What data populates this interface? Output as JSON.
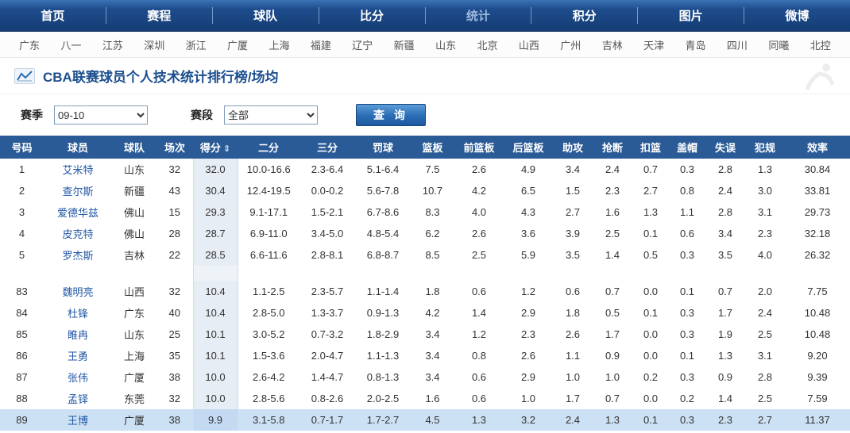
{
  "nav": {
    "items": [
      {
        "label": "首页",
        "active": false
      },
      {
        "label": "赛程",
        "active": false
      },
      {
        "label": "球队",
        "active": false
      },
      {
        "label": "比分",
        "active": false
      },
      {
        "label": "统计",
        "active": true
      },
      {
        "label": "积分",
        "active": false
      },
      {
        "label": "图片",
        "active": false
      },
      {
        "label": "微博",
        "active": false
      }
    ]
  },
  "teams": [
    "广东",
    "八一",
    "江苏",
    "深圳",
    "浙江",
    "广厦",
    "上海",
    "福建",
    "辽宁",
    "新疆",
    "山东",
    "北京",
    "山西",
    "广州",
    "吉林",
    "天津",
    "青岛",
    "四川",
    "同曦",
    "北控"
  ],
  "header": {
    "title": "CBA联赛球员个人技术统计排行榜/场均"
  },
  "filters": {
    "season_label": "赛季",
    "season_value": "09-10",
    "stage_label": "赛段",
    "stage_value": "全部",
    "search_button": "查 询"
  },
  "table": {
    "columns": [
      "号码",
      "球员",
      "球队",
      "场次",
      "得分",
      "二分",
      "三分",
      "罚球",
      "篮板",
      "前篮板",
      "后篮板",
      "助攻",
      "抢断",
      "扣篮",
      "盖帽",
      "失误",
      "犯规",
      "效率"
    ],
    "sort_column": "得分",
    "sort_icon": "⇕",
    "score_column_index": 4,
    "highlighted_number": "89",
    "top_rows": [
      [
        "1",
        "艾米特",
        "山东",
        "32",
        "32.0",
        "10.0-16.6",
        "2.3-6.4",
        "5.1-6.4",
        "7.5",
        "2.6",
        "4.9",
        "3.4",
        "2.4",
        "0.7",
        "0.3",
        "2.8",
        "1.3",
        "30.84"
      ],
      [
        "2",
        "查尔斯",
        "新疆",
        "43",
        "30.4",
        "12.4-19.5",
        "0.0-0.2",
        "5.6-7.8",
        "10.7",
        "4.2",
        "6.5",
        "1.5",
        "2.3",
        "2.7",
        "0.8",
        "2.4",
        "3.0",
        "33.81"
      ],
      [
        "3",
        "爱德华兹",
        "佛山",
        "15",
        "29.3",
        "9.1-17.1",
        "1.5-2.1",
        "6.7-8.6",
        "8.3",
        "4.0",
        "4.3",
        "2.7",
        "1.6",
        "1.3",
        "1.1",
        "2.8",
        "3.1",
        "29.73"
      ],
      [
        "4",
        "皮克特",
        "佛山",
        "28",
        "28.7",
        "6.9-11.0",
        "3.4-5.0",
        "4.8-5.4",
        "6.2",
        "2.6",
        "3.6",
        "3.9",
        "2.5",
        "0.1",
        "0.6",
        "3.4",
        "2.3",
        "32.18"
      ],
      [
        "5",
        "罗杰斯",
        "吉林",
        "22",
        "28.5",
        "6.6-11.6",
        "2.8-8.1",
        "6.8-8.7",
        "8.5",
        "2.5",
        "5.9",
        "3.5",
        "1.4",
        "0.5",
        "0.3",
        "3.5",
        "4.0",
        "26.32"
      ]
    ],
    "bottom_rows": [
      [
        "83",
        "魏明亮",
        "山西",
        "32",
        "10.4",
        "1.1-2.5",
        "2.3-5.7",
        "1.1-1.4",
        "1.8",
        "0.6",
        "1.2",
        "0.6",
        "0.7",
        "0.0",
        "0.1",
        "0.7",
        "2.0",
        "7.75"
      ],
      [
        "84",
        "杜锋",
        "广东",
        "40",
        "10.4",
        "2.8-5.0",
        "1.3-3.7",
        "0.9-1.3",
        "4.2",
        "1.4",
        "2.9",
        "1.8",
        "0.5",
        "0.1",
        "0.3",
        "1.7",
        "2.4",
        "10.48"
      ],
      [
        "85",
        "睢冉",
        "山东",
        "25",
        "10.1",
        "3.0-5.2",
        "0.7-3.2",
        "1.8-2.9",
        "3.4",
        "1.2",
        "2.3",
        "2.6",
        "1.7",
        "0.0",
        "0.3",
        "1.9",
        "2.5",
        "10.48"
      ],
      [
        "86",
        "王勇",
        "上海",
        "35",
        "10.1",
        "1.5-3.6",
        "2.0-4.7",
        "1.1-1.3",
        "3.4",
        "0.8",
        "2.6",
        "1.1",
        "0.9",
        "0.0",
        "0.1",
        "1.3",
        "3.1",
        "9.20"
      ],
      [
        "87",
        "张伟",
        "广厦",
        "38",
        "10.0",
        "2.6-4.2",
        "1.4-4.7",
        "0.8-1.3",
        "3.4",
        "0.6",
        "2.9",
        "1.0",
        "1.0",
        "0.2",
        "0.3",
        "0.9",
        "2.8",
        "9.39"
      ],
      [
        "88",
        "孟铎",
        "东莞",
        "32",
        "10.0",
        "2.8-5.6",
        "0.8-2.6",
        "2.0-2.5",
        "1.6",
        "0.6",
        "1.0",
        "1.7",
        "0.7",
        "0.0",
        "0.2",
        "1.4",
        "2.5",
        "7.59"
      ],
      [
        "89",
        "王博",
        "广厦",
        "38",
        "9.9",
        "3.1-5.8",
        "0.7-1.7",
        "1.7-2.7",
        "4.5",
        "1.3",
        "3.2",
        "2.4",
        "1.3",
        "0.1",
        "0.3",
        "2.3",
        "2.7",
        "11.37"
      ]
    ]
  },
  "colors": {
    "nav_blue": "#1e4c8c",
    "header_blue": "#2b5b96",
    "link_blue": "#2157a5",
    "highlight_row": "#cde1f5",
    "score_band": "#e7edf4"
  }
}
